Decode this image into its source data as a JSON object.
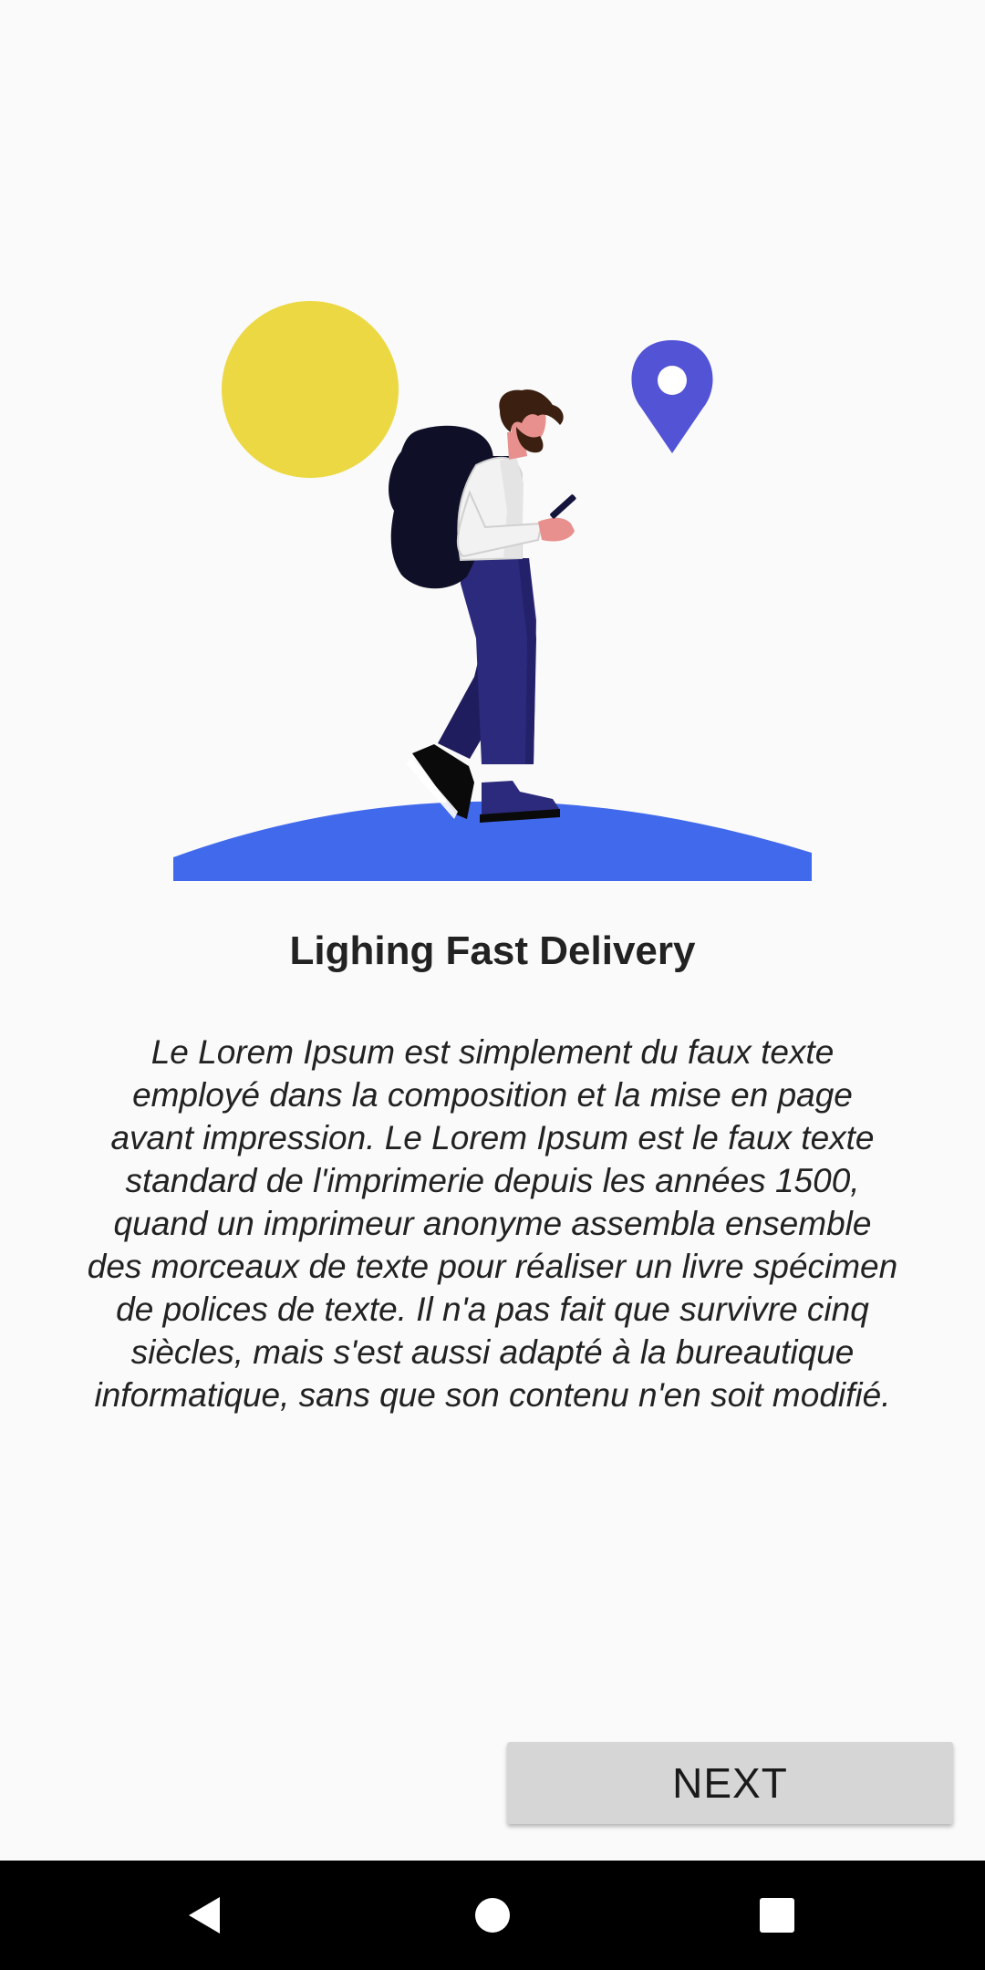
{
  "onboarding": {
    "title": "Lighing Fast Delivery",
    "description": "Le Lorem Ipsum est simplement du faux texte employé dans la composition et la mise en page avant impression. Le Lorem Ipsum est le faux texte standard de l'imprimerie depuis les années 1500, quand un imprimeur anonyme assembla ensemble des morceaux de texte pour réaliser un livre spécimen de polices de texte. Il n'a pas fait que survivre cinq siècles, mais s'est aussi adapté à la bureautique informatique, sans que son contenu n'en soit modifié.",
    "next_label": "NEXT"
  },
  "illustration": {
    "icons": [
      "sun-icon",
      "location-pin-icon",
      "hiker-illustration",
      "ground-hill"
    ],
    "colors": {
      "sun": "#ecd843",
      "pin": "#5353d6",
      "ground": "#4169ec",
      "pants": "#2c2a7c",
      "backpack": "#0f0f28",
      "hair": "#3b1f10",
      "skin": "#e8908e"
    }
  },
  "nav_bar": {
    "icons": [
      "back-icon",
      "home-icon",
      "recents-icon"
    ]
  }
}
